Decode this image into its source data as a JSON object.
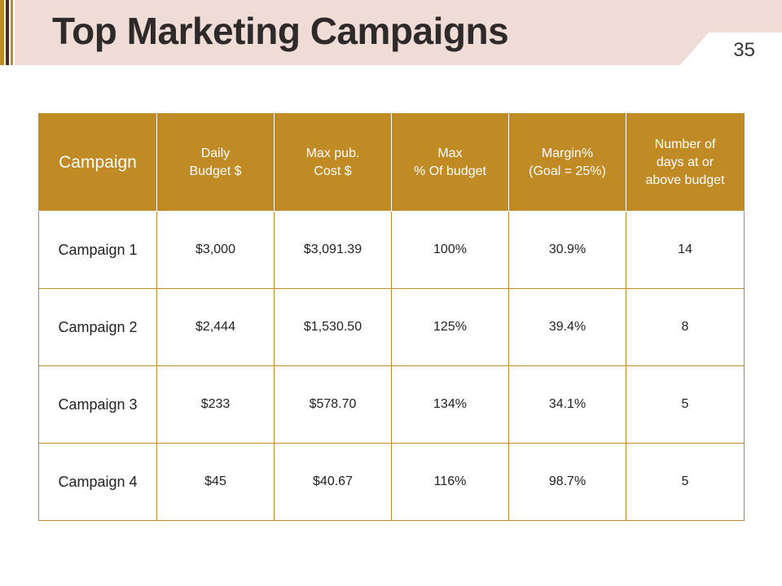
{
  "slide": {
    "title": "Top Marketing Campaigns",
    "page_number": "35"
  },
  "colors": {
    "accent": "#c08a25",
    "title_band": "#f0dcd6",
    "dark_bar": "#4a2a24",
    "title_text": "#2e2a29"
  },
  "table": {
    "headers": [
      "Campaign",
      "Daily\nBudget $",
      "Max pub.\nCost $",
      "Max\n% Of budget",
      "Margin%\n(Goal = 25%)",
      "Number of\ndays at or\nabove budget"
    ],
    "rows": [
      [
        "Campaign 1",
        "$3,000",
        "$3,091.39",
        "100%",
        "30.9%",
        "14"
      ],
      [
        "Campaign 2",
        "$2,444",
        "$1,530.50",
        "125%",
        "39.4%",
        "8"
      ],
      [
        "Campaign 3",
        "$233",
        "$578.70",
        "134%",
        "34.1%",
        "5"
      ],
      [
        "Campaign 4",
        "$45",
        "$40.67",
        "116%",
        "98.7%",
        "5"
      ]
    ]
  }
}
